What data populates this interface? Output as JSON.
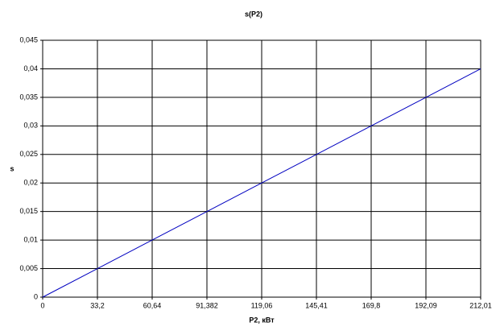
{
  "chart_data": {
    "type": "line",
    "title": "s(P2)",
    "x_label": "P2, кВт",
    "y_label": "s",
    "categories": [
      "0",
      "33,2",
      "60,64",
      "91,382",
      "119,06",
      "145,41",
      "169,8",
      "192,09",
      "212,01"
    ],
    "series": [
      {
        "name": "s",
        "color": "#0000c0",
        "values": [
          0,
          0.005,
          0.01,
          0.015,
          0.02,
          0.025,
          0.03,
          0.035,
          0.04
        ]
      }
    ],
    "ylim": [
      0,
      0.045
    ],
    "yticks": [
      0,
      {
        "value": 0.005,
        "label": "0,005"
      },
      {
        "value": 0.01,
        "label": "0,01"
      },
      {
        "value": 0.015,
        "label": "0,015"
      },
      {
        "value": 0.02,
        "label": "0,02"
      },
      {
        "value": 0.025,
        "label": "0,025"
      },
      {
        "value": 0.03,
        "label": "0,03"
      },
      {
        "value": 0.035,
        "label": "0,035"
      },
      {
        "value": 0.04,
        "label": "0,04"
      },
      {
        "value": 0.045,
        "label": "0,045"
      }
    ],
    "grid": true,
    "legend": false
  }
}
